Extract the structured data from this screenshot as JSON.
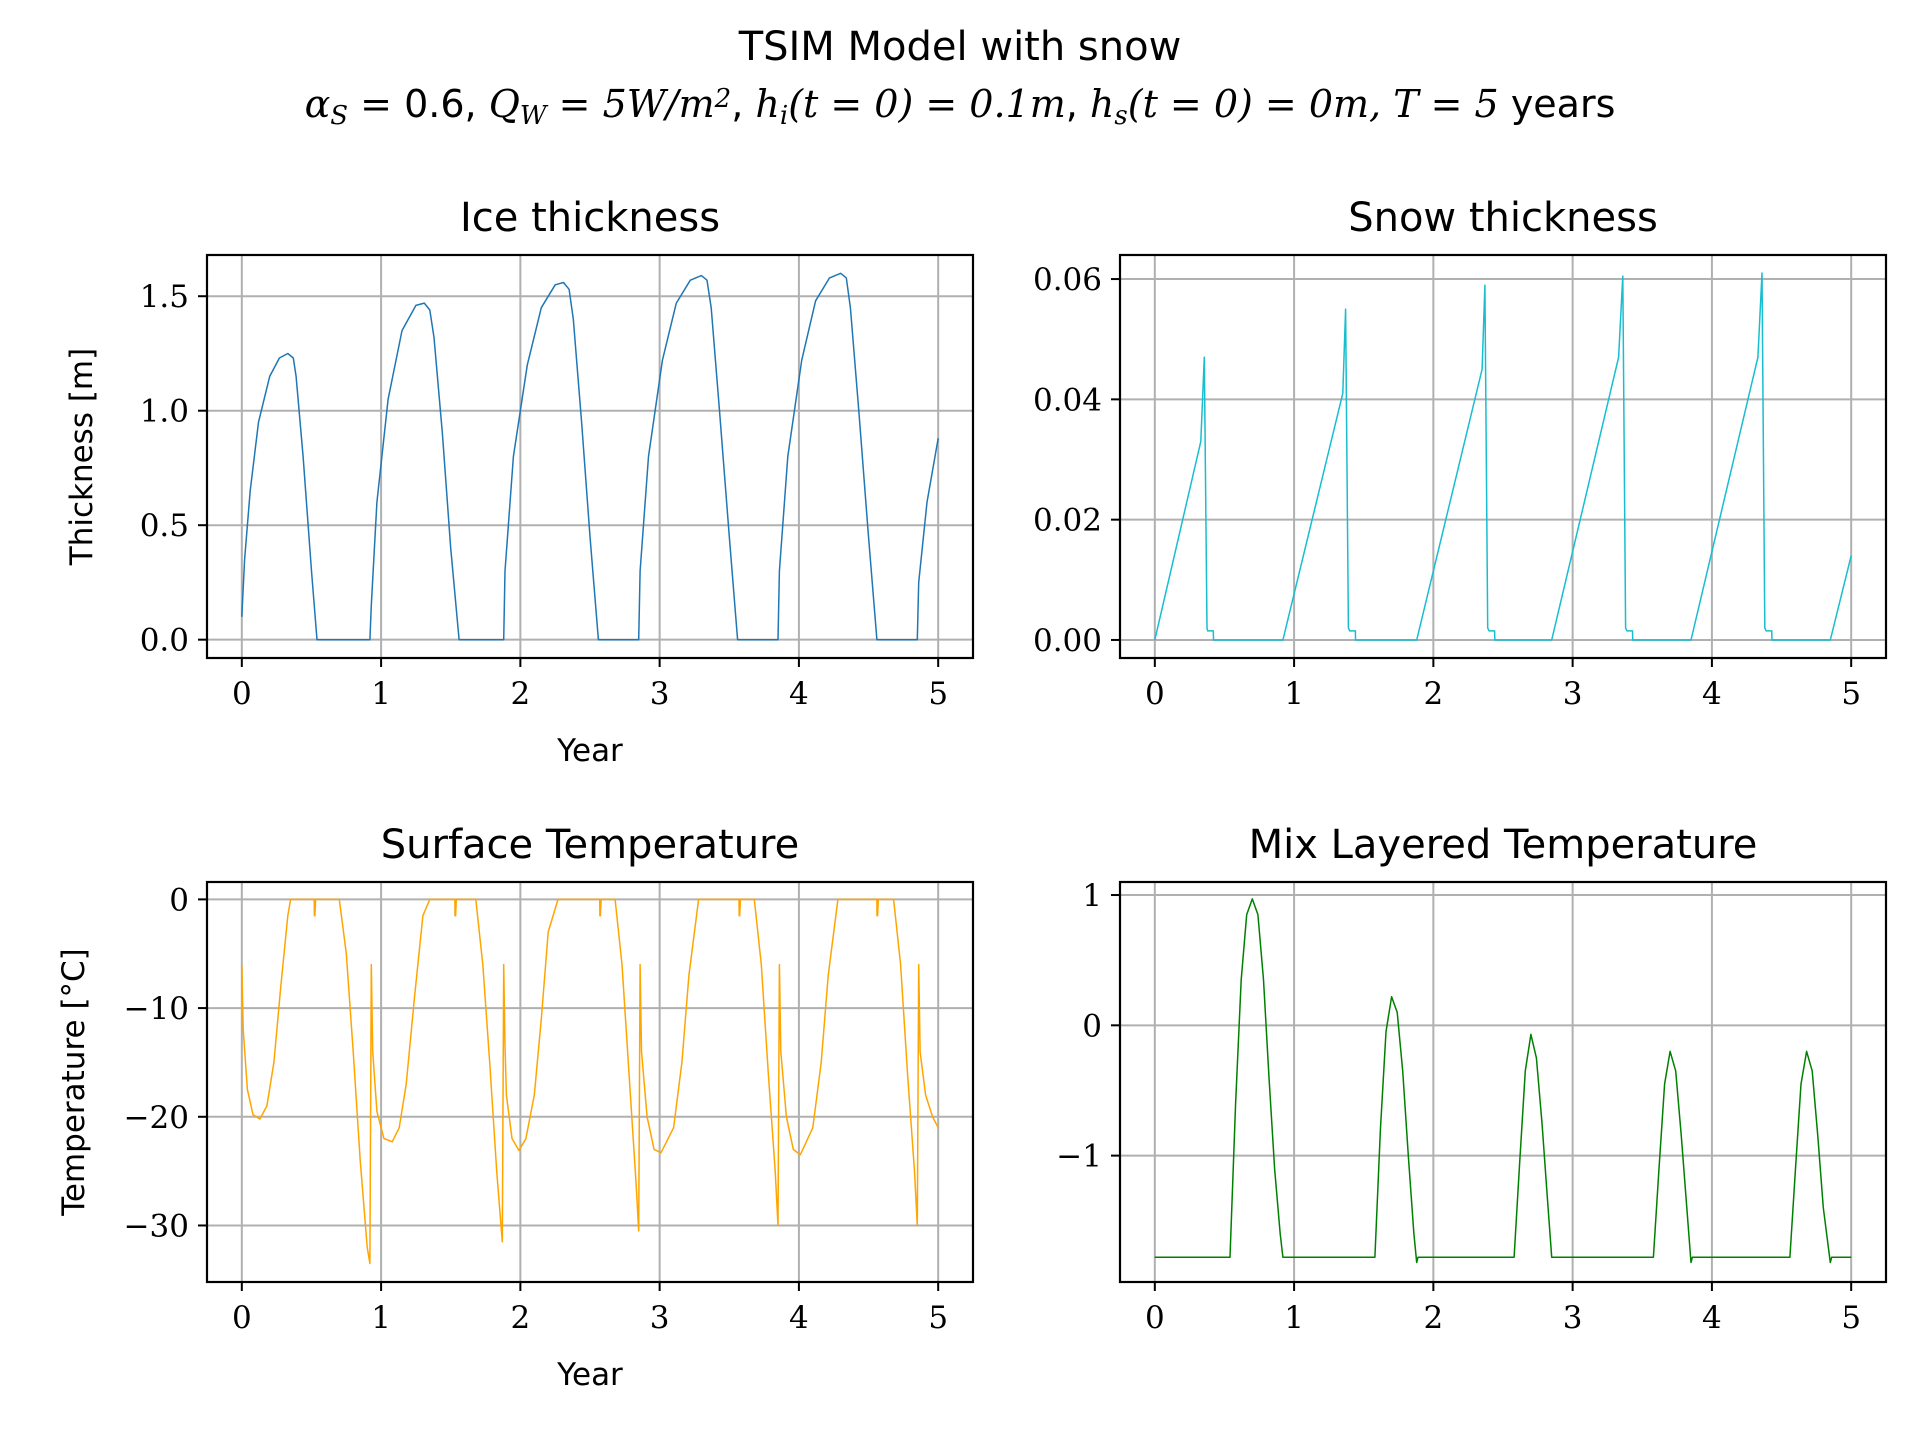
{
  "figure": {
    "title": "TSIM Model with snow",
    "subtitle_parts": [
      {
        "t": "α",
        "math": true
      },
      {
        "t": "S",
        "math": true,
        "sub": true
      },
      {
        "t": " = ",
        "math": true
      },
      {
        "t": "0.6, ",
        "math": false
      },
      {
        "t": "Q",
        "math": true
      },
      {
        "t": "W",
        "math": true,
        "sub": true
      },
      {
        "t": " = 5W/m",
        "math": true
      },
      {
        "t": "2",
        "math": true,
        "sup": true
      },
      {
        "t": ", ",
        "math": false
      },
      {
        "t": "h",
        "math": true
      },
      {
        "t": "i",
        "math": true,
        "sub": true
      },
      {
        "t": "(t = 0) = 0.1m",
        "math": true
      },
      {
        "t": ", ",
        "math": false
      },
      {
        "t": "h",
        "math": true
      },
      {
        "t": "s",
        "math": true,
        "sub": true
      },
      {
        "t": "(t = 0) = 0m, T = 5",
        "math": true
      },
      {
        "t": " years",
        "math": false
      }
    ]
  },
  "chart_data": [
    {
      "type": "line",
      "title": "Ice thickness",
      "xlabel": "Year",
      "ylabel": "Thickness [m]",
      "xlim": [
        -0.25,
        5.25
      ],
      "ylim": [
        -0.08,
        1.68
      ],
      "xticks": [
        0,
        1,
        2,
        3,
        4,
        5
      ],
      "yticks": [
        0.0,
        0.5,
        1.0,
        1.5
      ],
      "ytick_labels": [
        "0.0",
        "0.5",
        "1.0",
        "1.5"
      ],
      "grid": true,
      "series": [
        {
          "color": "#1f77b4",
          "x": [
            0,
            0.02,
            0.06,
            0.12,
            0.2,
            0.27,
            0.33,
            0.37,
            0.39,
            0.44,
            0.5,
            0.54,
            0.92,
            0.93,
            0.97,
            1.05,
            1.15,
            1.25,
            1.31,
            1.35,
            1.38,
            1.44,
            1.5,
            1.56,
            1.88,
            1.89,
            1.95,
            2.05,
            2.15,
            2.25,
            2.31,
            2.35,
            2.38,
            2.44,
            2.5,
            2.56,
            2.85,
            2.86,
            2.92,
            3.02,
            3.12,
            3.22,
            3.3,
            3.34,
            3.37,
            3.43,
            3.5,
            3.56,
            3.85,
            3.86,
            3.92,
            4.02,
            4.12,
            4.22,
            4.3,
            4.34,
            4.37,
            4.43,
            4.5,
            4.56,
            4.85,
            4.86,
            4.92,
            5.0
          ],
          "y": [
            0.1,
            0.35,
            0.65,
            0.95,
            1.15,
            1.23,
            1.25,
            1.23,
            1.15,
            0.8,
            0.3,
            0.0,
            0.0,
            0.15,
            0.6,
            1.05,
            1.35,
            1.46,
            1.47,
            1.44,
            1.32,
            0.9,
            0.4,
            0.0,
            0.0,
            0.3,
            0.8,
            1.2,
            1.45,
            1.55,
            1.56,
            1.53,
            1.4,
            0.95,
            0.45,
            0.0,
            0.0,
            0.3,
            0.8,
            1.22,
            1.47,
            1.57,
            1.59,
            1.57,
            1.45,
            1.0,
            0.45,
            0.0,
            0.0,
            0.3,
            0.8,
            1.22,
            1.48,
            1.58,
            1.6,
            1.58,
            1.45,
            1.0,
            0.45,
            0.0,
            0.0,
            0.25,
            0.6,
            0.88
          ]
        }
      ]
    },
    {
      "type": "line",
      "title": "Snow thickness",
      "xlabel": "",
      "ylabel": "",
      "xlim": [
        -0.25,
        5.25
      ],
      "ylim": [
        -0.003,
        0.064
      ],
      "xticks": [
        0,
        1,
        2,
        3,
        4,
        5
      ],
      "yticks": [
        0.0,
        0.02,
        0.04,
        0.06
      ],
      "ytick_labels": [
        "0.00",
        "0.02",
        "0.04",
        "0.06"
      ],
      "grid": true,
      "series": [
        {
          "color": "#17becf",
          "x": [
            0,
            0.33,
            0.355,
            0.375,
            0.38,
            0.42,
            0.421,
            0.92,
            1.35,
            1.37,
            1.39,
            1.4,
            1.44,
            1.441,
            1.88,
            2.35,
            2.37,
            2.39,
            2.4,
            2.44,
            2.441,
            2.85,
            3.33,
            3.36,
            3.38,
            3.39,
            3.43,
            3.431,
            3.85,
            4.33,
            4.36,
            4.38,
            4.39,
            4.43,
            4.431,
            4.85,
            5.0
          ],
          "y": [
            0.0,
            0.033,
            0.047,
            0.002,
            0.0015,
            0.0015,
            0.0,
            0.0,
            0.041,
            0.055,
            0.002,
            0.0015,
            0.0015,
            0.0,
            0.0,
            0.045,
            0.059,
            0.002,
            0.0015,
            0.0015,
            0.0,
            0.0,
            0.047,
            0.0605,
            0.002,
            0.0015,
            0.0015,
            0.0,
            0.0,
            0.047,
            0.061,
            0.002,
            0.0015,
            0.0015,
            0.0,
            0.0,
            0.014
          ]
        }
      ]
    },
    {
      "type": "line",
      "title": "Surface Temperature",
      "xlabel": "Year",
      "ylabel": "Temperature [°C]",
      "xlim": [
        -0.25,
        5.25
      ],
      "ylim": [
        -35.2,
        1.6
      ],
      "xticks": [
        0,
        1,
        2,
        3,
        4,
        5
      ],
      "yticks": [
        0,
        -10,
        -20,
        -30
      ],
      "ytick_labels": [
        "0",
        "−10",
        "−20",
        "−30"
      ],
      "grid": true,
      "series": [
        {
          "color": "#ffa500",
          "x": [
            0,
            0.01,
            0.04,
            0.08,
            0.13,
            0.18,
            0.23,
            0.28,
            0.33,
            0.35,
            0.52,
            0.521,
            0.525,
            0.53,
            0.7,
            0.75,
            0.8,
            0.85,
            0.9,
            0.92,
            0.93,
            0.94,
            0.97,
            1.02,
            1.08,
            1.13,
            1.18,
            1.24,
            1.3,
            1.35,
            1.36,
            1.53,
            1.531,
            1.535,
            1.54,
            1.68,
            1.73,
            1.78,
            1.83,
            1.87,
            1.88,
            1.89,
            1.9,
            1.94,
            1.99,
            2.04,
            2.1,
            2.15,
            2.2,
            2.27,
            2.33,
            2.36,
            2.57,
            2.571,
            2.575,
            2.58,
            2.68,
            2.73,
            2.78,
            2.83,
            2.85,
            2.86,
            2.87,
            2.91,
            2.96,
            3.01,
            3.1,
            3.16,
            3.21,
            3.28,
            3.33,
            3.35,
            3.57,
            3.571,
            3.575,
            3.58,
            3.68,
            3.73,
            3.78,
            3.83,
            3.85,
            3.86,
            3.87,
            3.91,
            3.96,
            4.01,
            4.1,
            4.16,
            4.21,
            4.28,
            4.33,
            4.35,
            4.56,
            4.561,
            4.565,
            4.57,
            4.68,
            4.73,
            4.78,
            4.83,
            4.85,
            4.86,
            4.87,
            4.91,
            4.96,
            5.0
          ],
          "y": [
            -6.0,
            -12.0,
            -17.5,
            -19.8,
            -20.2,
            -19.0,
            -15.0,
            -8.0,
            -1.5,
            0.0,
            0.0,
            -1.5,
            -1.5,
            0.0,
            0.0,
            -5.0,
            -14.0,
            -24.0,
            -32.0,
            -33.5,
            -6.0,
            -14.0,
            -19.5,
            -22.0,
            -22.3,
            -21.0,
            -17.0,
            -9.0,
            -1.5,
            0.0,
            0.0,
            0.0,
            -1.5,
            -1.5,
            0.0,
            0.0,
            -6.0,
            -15.0,
            -25.0,
            -31.5,
            -6.0,
            -13.5,
            -18.0,
            -22.0,
            -23.1,
            -22.0,
            -18.0,
            -11.0,
            -3.0,
            0.0,
            0.0,
            0.0,
            0.0,
            -1.5,
            -1.5,
            0.0,
            0.0,
            -6.0,
            -16.0,
            -26.0,
            -30.5,
            -6.0,
            -14.0,
            -20.0,
            -23.0,
            -23.3,
            -21.0,
            -15.0,
            -7.0,
            0.0,
            0.0,
            0.0,
            0.0,
            -1.5,
            -1.5,
            0.0,
            0.0,
            -6.0,
            -16.0,
            -25.0,
            -30.0,
            -6.0,
            -14.0,
            -20.0,
            -23.0,
            -23.5,
            -21.0,
            -15.0,
            -7.0,
            0.0,
            0.0,
            0.0,
            0.0,
            -1.5,
            -1.5,
            0.0,
            0.0,
            -6.0,
            -16.0,
            -25.0,
            -30.0,
            -6.0,
            -14.0,
            -18.0,
            -20.0,
            -21.0
          ]
        }
      ]
    },
    {
      "type": "line",
      "title": "Mix Layered Temperature",
      "xlabel": "",
      "ylabel": "",
      "xlim": [
        -0.25,
        5.25
      ],
      "ylim": [
        -1.97,
        1.1
      ],
      "xticks": [
        0,
        1,
        2,
        3,
        4,
        5
      ],
      "yticks": [
        1,
        0,
        -1
      ],
      "ytick_labels": [
        "1",
        "0",
        "−1"
      ],
      "grid": true,
      "series": [
        {
          "color": "#008000",
          "x": [
            0,
            0.54,
            0.58,
            0.62,
            0.66,
            0.7,
            0.74,
            0.78,
            0.82,
            0.86,
            0.9,
            0.92,
            0.93,
            1.58,
            1.62,
            1.66,
            1.7,
            1.74,
            1.78,
            1.82,
            1.86,
            1.88,
            1.89,
            2.58,
            2.62,
            2.66,
            2.7,
            2.74,
            2.78,
            2.82,
            2.85,
            2.86,
            3.58,
            3.62,
            3.66,
            3.7,
            3.74,
            3.78,
            3.82,
            3.85,
            3.86,
            4.56,
            4.6,
            4.64,
            4.68,
            4.72,
            4.76,
            4.8,
            4.85,
            4.86,
            5.0
          ],
          "y": [
            -1.78,
            -1.78,
            -0.6,
            0.35,
            0.85,
            0.97,
            0.85,
            0.35,
            -0.4,
            -1.1,
            -1.6,
            -1.78,
            -1.78,
            -1.78,
            -0.8,
            -0.05,
            0.22,
            0.1,
            -0.35,
            -1.0,
            -1.6,
            -1.82,
            -1.78,
            -1.78,
            -1.05,
            -0.35,
            -0.07,
            -0.25,
            -0.75,
            -1.35,
            -1.78,
            -1.78,
            -1.78,
            -1.1,
            -0.45,
            -0.2,
            -0.35,
            -0.85,
            -1.4,
            -1.82,
            -1.78,
            -1.78,
            -1.1,
            -0.45,
            -0.2,
            -0.35,
            -0.85,
            -1.4,
            -1.82,
            -1.78,
            -1.78
          ]
        }
      ]
    }
  ]
}
